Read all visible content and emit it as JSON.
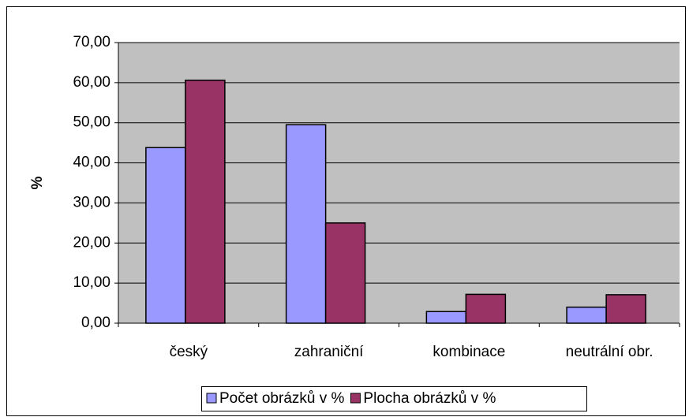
{
  "chart_data": {
    "type": "bar",
    "y_label": "%",
    "categories": [
      "český",
      "zahraniční",
      "kombinace",
      "neutrální obr."
    ],
    "series": [
      {
        "name": "Počet obrázků v %",
        "color": "#9999ff",
        "values": [
          43.8,
          49.5,
          2.9,
          4.0
        ]
      },
      {
        "name": "Plocha obrázků v %",
        "color": "#993366",
        "values": [
          60.6,
          25.0,
          7.2,
          7.1
        ]
      }
    ],
    "ylim": [
      0,
      70
    ],
    "yticks": [
      {
        "value": 0,
        "label": "0,00"
      },
      {
        "value": 10,
        "label": "10,00"
      },
      {
        "value": 20,
        "label": "20,00"
      },
      {
        "value": 30,
        "label": "30,00"
      },
      {
        "value": 40,
        "label": "40,00"
      },
      {
        "value": 50,
        "label": "50,00"
      },
      {
        "value": 60,
        "label": "60,00"
      },
      {
        "value": 70,
        "label": "70,00"
      }
    ],
    "grid": true,
    "plot_background": "#c0c0c0",
    "legend": "bottom"
  }
}
